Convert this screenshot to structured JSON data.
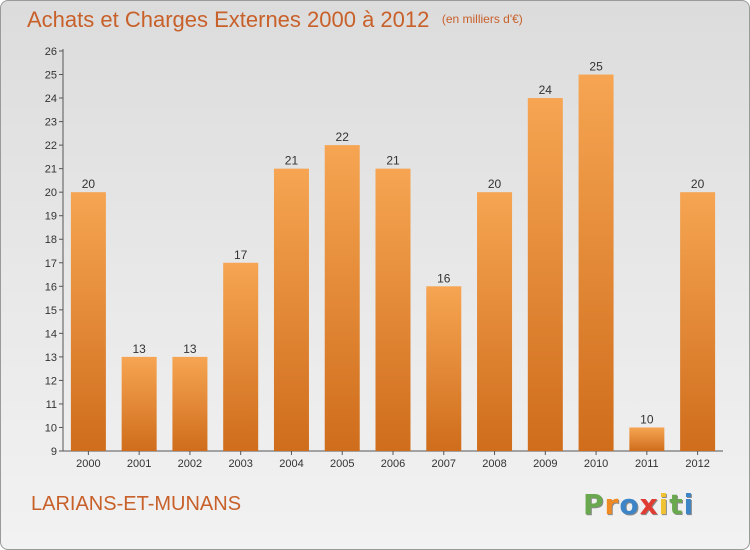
{
  "header": {
    "title": "Achats et Charges Externes 2000 à 2012",
    "unit": "(en milliers d'€)"
  },
  "footer": {
    "location": "LARIANS-ET-MUNANS",
    "brand": "Proxiti"
  },
  "colors": {
    "bar_light": "#f6a552",
    "bar_dark": "#cf6d1c",
    "title": "#c8602a",
    "brand_letters": [
      "#6aa84f",
      "#f08a24",
      "#3d85c6",
      "#e03c31",
      "#f1c232",
      "#6aa84f",
      "#3d85c6"
    ]
  },
  "chart_data": {
    "type": "bar",
    "title": "Achats et Charges Externes 2000 à 2012",
    "subtitle": "(en milliers d'€)",
    "categories": [
      "2000",
      "2001",
      "2002",
      "2003",
      "2004",
      "2005",
      "2006",
      "2007",
      "2008",
      "2009",
      "2010",
      "2011",
      "2012"
    ],
    "values": [
      20,
      13,
      13,
      17,
      21,
      22,
      21,
      16,
      20,
      24,
      25,
      10,
      20
    ],
    "ylim": [
      9,
      26
    ],
    "yticks": [
      9,
      10,
      11,
      12,
      13,
      14,
      15,
      16,
      17,
      18,
      19,
      20,
      21,
      22,
      23,
      24,
      25,
      26
    ],
    "grid": false,
    "data_labels": true
  }
}
